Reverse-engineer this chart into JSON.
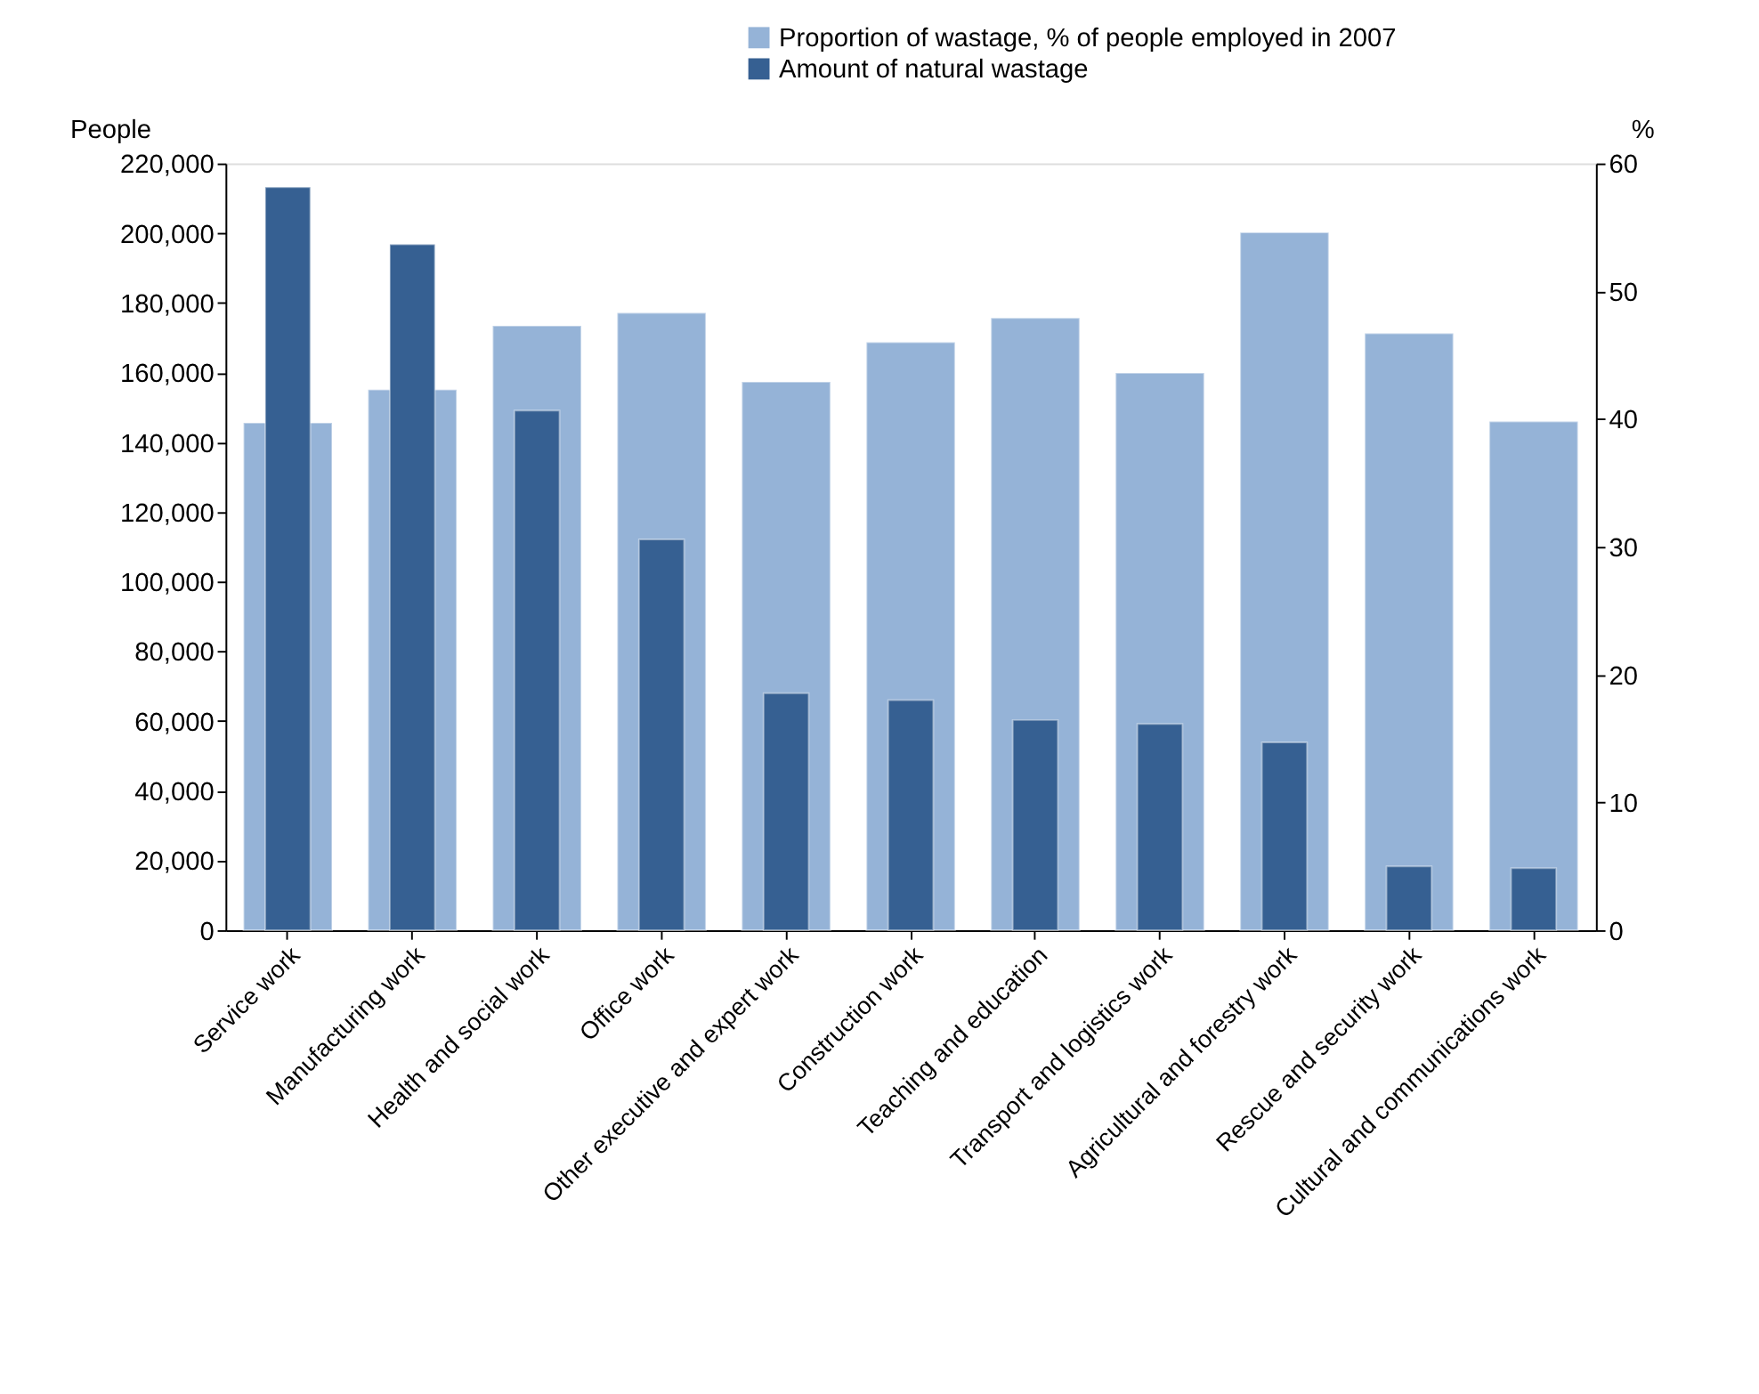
{
  "chart_data": {
    "type": "bar",
    "categories": [
      "Service work",
      "Manufacturing work",
      "Health and social work",
      "Office work",
      "Other executive and expert work",
      "Construction work",
      "Teaching and education",
      "Transport and logistics work",
      "Agricultural and forestry work",
      "Rescue and security work",
      "Cultural and communications work"
    ],
    "series": [
      {
        "name": "Proportion of wastage, % of people employed in 2007",
        "color": "#95b3d7",
        "axis": "y2",
        "values": [
          39.7,
          42.3,
          47.3,
          48.3,
          42.9,
          46.0,
          47.9,
          43.6,
          54.6,
          46.7,
          39.8
        ]
      },
      {
        "name": "Amount of natural wastage",
        "color": "#366092",
        "axis": "y",
        "values": [
          213200,
          196800,
          149100,
          112100,
          68000,
          66000,
          60300,
          59200,
          53900,
          18300,
          17800
        ]
      }
    ],
    "ylabel": "People",
    "y2label": "%",
    "ylim": [
      0,
      220000
    ],
    "yticks": [
      0,
      {
        "value": 20000,
        "label": "20,000"
      },
      {
        "value": 40000,
        "label": "40,000"
      },
      {
        "value": 60000,
        "label": "60,000"
      },
      {
        "value": 80000,
        "label": "80,000"
      },
      {
        "value": 100000,
        "label": "100,000"
      },
      {
        "value": 120000,
        "label": "120,000"
      },
      {
        "value": 140000,
        "label": "140,000"
      },
      {
        "value": 160000,
        "label": "160,000"
      },
      {
        "value": 180000,
        "label": "180,000"
      },
      {
        "value": 200000,
        "label": "200,000"
      },
      {
        "value": 220000,
        "label": "220,000"
      }
    ],
    "y2lim": [
      0,
      60
    ],
    "y2ticks": [
      0,
      10,
      20,
      30,
      40,
      50,
      60
    ],
    "grid": false,
    "legend": "top"
  }
}
